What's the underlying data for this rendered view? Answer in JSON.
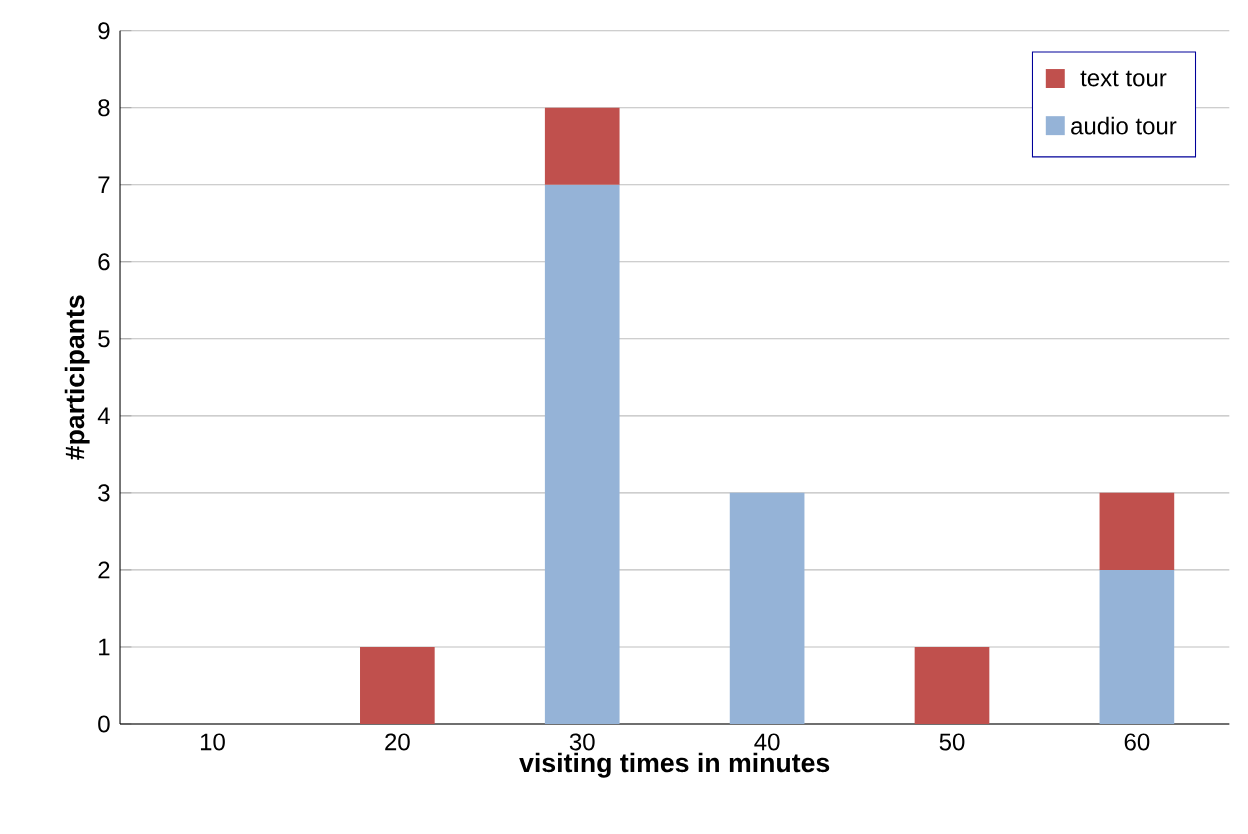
{
  "chart_data": {
    "type": "bar",
    "stacked": true,
    "xlabel": "visiting times in minutes",
    "ylabel": "#participants",
    "categories": [
      "10",
      "20",
      "30",
      "40",
      "50",
      "60"
    ],
    "series": [
      {
        "name": "audio tour",
        "color": "#95b3d7",
        "values": [
          0,
          0,
          7,
          3,
          0,
          2
        ]
      },
      {
        "name": "text tour",
        "color": "#c0504d",
        "values": [
          0,
          1,
          1,
          0,
          1,
          1
        ]
      }
    ],
    "ylim": [
      0,
      9
    ],
    "yticks": [
      0,
      1,
      2,
      3,
      4,
      5,
      6,
      7,
      8,
      9
    ],
    "grid": "y",
    "legend": "top right"
  }
}
